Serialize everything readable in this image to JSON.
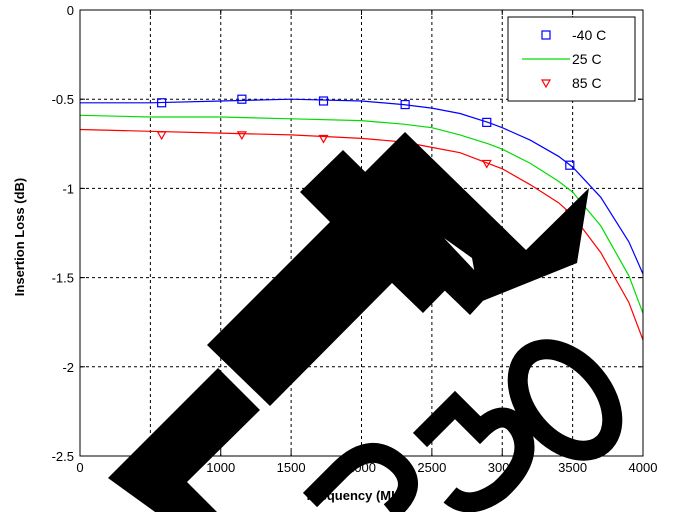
{
  "chart_data": {
    "type": "line",
    "xlabel": "Frequency (MHz)",
    "ylabel": "Insertion Loss (dB)",
    "xlim": [
      0,
      4000
    ],
    "ylim": [
      -2.5,
      0
    ],
    "xticks": [
      0,
      500,
      1000,
      1500,
      2000,
      2500,
      3000,
      3500,
      4000
    ],
    "xtick_labels": [
      "0",
      "500",
      "1000",
      "1500",
      "2000",
      "2500",
      "3000",
      "3500",
      "4000"
    ],
    "yticks": [
      0,
      -0.5,
      -1,
      -1.5,
      -2,
      -2.5
    ],
    "ytick_labels": [
      "0",
      "-0.5",
      "-1",
      "-1.5",
      "-2",
      "-2.5"
    ],
    "grid": true,
    "legend_position": "top-right",
    "watermark": "ETE 259",
    "series": [
      {
        "name": "-40 C",
        "color": "#0000ff",
        "marker": "square",
        "x": [
          0,
          500,
          1000,
          1500,
          2000,
          2300,
          2500,
          2700,
          2900,
          3000,
          3200,
          3400,
          3500,
          3700,
          3900,
          4000
        ],
        "y": [
          -0.52,
          -0.52,
          -0.51,
          -0.5,
          -0.51,
          -0.53,
          -0.55,
          -0.58,
          -0.63,
          -0.66,
          -0.73,
          -0.82,
          -0.88,
          -1.05,
          -1.3,
          -1.48
        ],
        "marker_x": [
          580,
          1150,
          1730,
          2310,
          2890,
          3480
        ],
        "marker_y": [
          -0.52,
          -0.5,
          -0.51,
          -0.53,
          -0.63,
          -0.87
        ]
      },
      {
        "name": "25 C",
        "color": "#00dd00",
        "marker": "none",
        "x": [
          0,
          500,
          1000,
          1500,
          2000,
          2300,
          2500,
          2700,
          2900,
          3000,
          3200,
          3400,
          3500,
          3700,
          3900,
          4000
        ],
        "y": [
          -0.59,
          -0.6,
          -0.6,
          -0.61,
          -0.62,
          -0.64,
          -0.66,
          -0.7,
          -0.75,
          -0.78,
          -0.86,
          -0.96,
          -1.02,
          -1.21,
          -1.49,
          -1.7
        ]
      },
      {
        "name": "85 C",
        "color": "#ff0000",
        "marker": "triangle-down",
        "x": [
          0,
          500,
          1000,
          1500,
          2000,
          2300,
          2500,
          2700,
          2900,
          3000,
          3200,
          3400,
          3500,
          3700,
          3900,
          4000
        ],
        "y": [
          -0.67,
          -0.68,
          -0.69,
          -0.7,
          -0.72,
          -0.74,
          -0.77,
          -0.8,
          -0.86,
          -0.89,
          -0.98,
          -1.08,
          -1.15,
          -1.36,
          -1.64,
          -1.85
        ],
        "marker_x": [
          580,
          1150,
          1730,
          2310,
          2890,
          3480
        ],
        "marker_y": [
          -0.7,
          -0.7,
          -0.72,
          -0.75,
          -0.86,
          -1.14
        ]
      }
    ]
  }
}
